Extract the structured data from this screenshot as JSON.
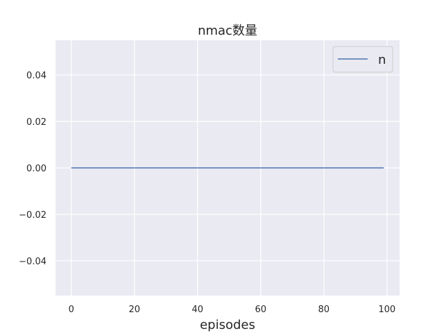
{
  "chart_data": {
    "type": "line",
    "title": "nmac数量",
    "xlabel": "episodes",
    "ylabel": "",
    "xlim": [
      -5,
      104
    ],
    "ylim": [
      -0.055,
      0.055
    ],
    "xticks": [
      0,
      20,
      40,
      60,
      80,
      100
    ],
    "xtick_labels": [
      "0",
      "20",
      "40",
      "60",
      "80",
      "100"
    ],
    "yticks": [
      0.04,
      0.02,
      0.0,
      -0.02,
      -0.04
    ],
    "ytick_labels": [
      "0.04",
      "0.02",
      "0.00",
      "−0.02",
      "−0.04"
    ],
    "grid": true,
    "legend_position": "top-right",
    "series": [
      {
        "name": "n",
        "color": "#4c72b0",
        "x": [
          0,
          99
        ],
        "y": [
          0,
          0
        ]
      }
    ]
  }
}
